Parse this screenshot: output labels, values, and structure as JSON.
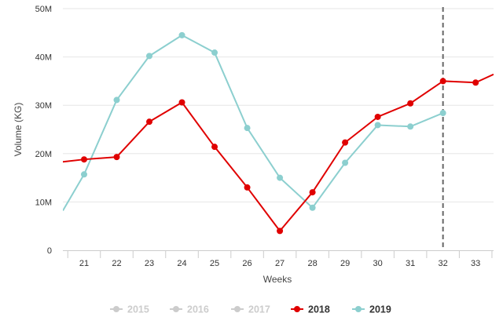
{
  "chart_data": {
    "type": "line",
    "xlabel": "Weeks",
    "ylabel": "Volume (KG)",
    "x_ticks": [
      21,
      22,
      23,
      24,
      25,
      26,
      27,
      28,
      29,
      30,
      31,
      32,
      33
    ],
    "x_range": [
      20.35,
      33.55
    ],
    "ylim": [
      0,
      50000000
    ],
    "y_ticks": [
      {
        "value": 0,
        "label": "0"
      },
      {
        "value": 10000000,
        "label": "10M"
      },
      {
        "value": 20000000,
        "label": "20M"
      },
      {
        "value": 30000000,
        "label": "30M"
      },
      {
        "value": 40000000,
        "label": "40M"
      },
      {
        "value": 50000000,
        "label": "50M"
      }
    ],
    "grid": true,
    "current_week_marker": 32,
    "legend_position": "bottom",
    "legend": [
      {
        "name": "2015",
        "active": false,
        "color": "#cccccc"
      },
      {
        "name": "2016",
        "active": false,
        "color": "#cccccc"
      },
      {
        "name": "2017",
        "active": false,
        "color": "#cccccc"
      },
      {
        "name": "2018",
        "active": true,
        "color": "#e00000"
      },
      {
        "name": "2019",
        "active": true,
        "color": "#8ccfcf"
      }
    ],
    "series": [
      {
        "name": "2018",
        "color": "#e00000",
        "points": [
          {
            "x": 21,
            "y": 18800000
          },
          {
            "x": 22,
            "y": 19300000
          },
          {
            "x": 23,
            "y": 26600000
          },
          {
            "x": 24,
            "y": 30600000
          },
          {
            "x": 25,
            "y": 21400000
          },
          {
            "x": 26,
            "y": 13000000
          },
          {
            "x": 27,
            "y": 4000000
          },
          {
            "x": 28,
            "y": 12000000
          },
          {
            "x": 29,
            "y": 22300000
          },
          {
            "x": 30,
            "y": 27600000
          },
          {
            "x": 31,
            "y": 30400000
          },
          {
            "x": 32,
            "y": 35000000
          },
          {
            "x": 33,
            "y": 34700000
          }
        ],
        "extends_left_to": {
          "x": 20.35,
          "y": 18300000
        },
        "extends_right_to": {
          "x": 33.55,
          "y": 36400000
        }
      },
      {
        "name": "2019",
        "color": "#8ccfcf",
        "points": [
          {
            "x": 21,
            "y": 15700000
          },
          {
            "x": 22,
            "y": 31100000
          },
          {
            "x": 23,
            "y": 40200000
          },
          {
            "x": 24,
            "y": 44500000
          },
          {
            "x": 25,
            "y": 40900000
          },
          {
            "x": 26,
            "y": 25300000
          },
          {
            "x": 27,
            "y": 15000000
          },
          {
            "x": 28,
            "y": 8800000
          },
          {
            "x": 29,
            "y": 18100000
          },
          {
            "x": 30,
            "y": 25900000
          },
          {
            "x": 31,
            "y": 25600000
          },
          {
            "x": 32,
            "y": 28400000
          }
        ],
        "extends_left_to": {
          "x": 20.35,
          "y": 8200000
        }
      }
    ]
  }
}
